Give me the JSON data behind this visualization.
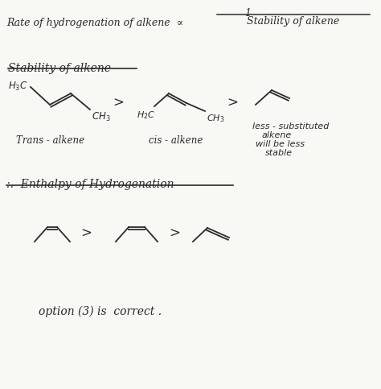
{
  "bg_color": "#f8f8f5",
  "text_color": "#2a2a2a",
  "figsize": [
    4.74,
    4.83
  ],
  "dpi": 100,
  "line1_text": "Rate of hydrogenation of alkene  ∝  ",
  "line1_frac_num": "1",
  "line1_frac_den": "Stability of alkene",
  "section1_title": "Stability of alkene",
  "trans_label": "$H_3C$",
  "trans_ch3": "$CH_3$",
  "trans_name": "Trans - alkene",
  "cis_h3c": "$H_2C$",
  "cis_ch3": "$CH_3$",
  "cis_name": "cis - alkene",
  "less_sub_line1": "less - substituted",
  "less_sub_line2": "alkene",
  "less_sub_line3": "will be less",
  "less_sub_line4": "stable",
  "section2_title": ":.  Enthalpy of Hydrogenation",
  "conclusion": "option (3) is  correct ."
}
